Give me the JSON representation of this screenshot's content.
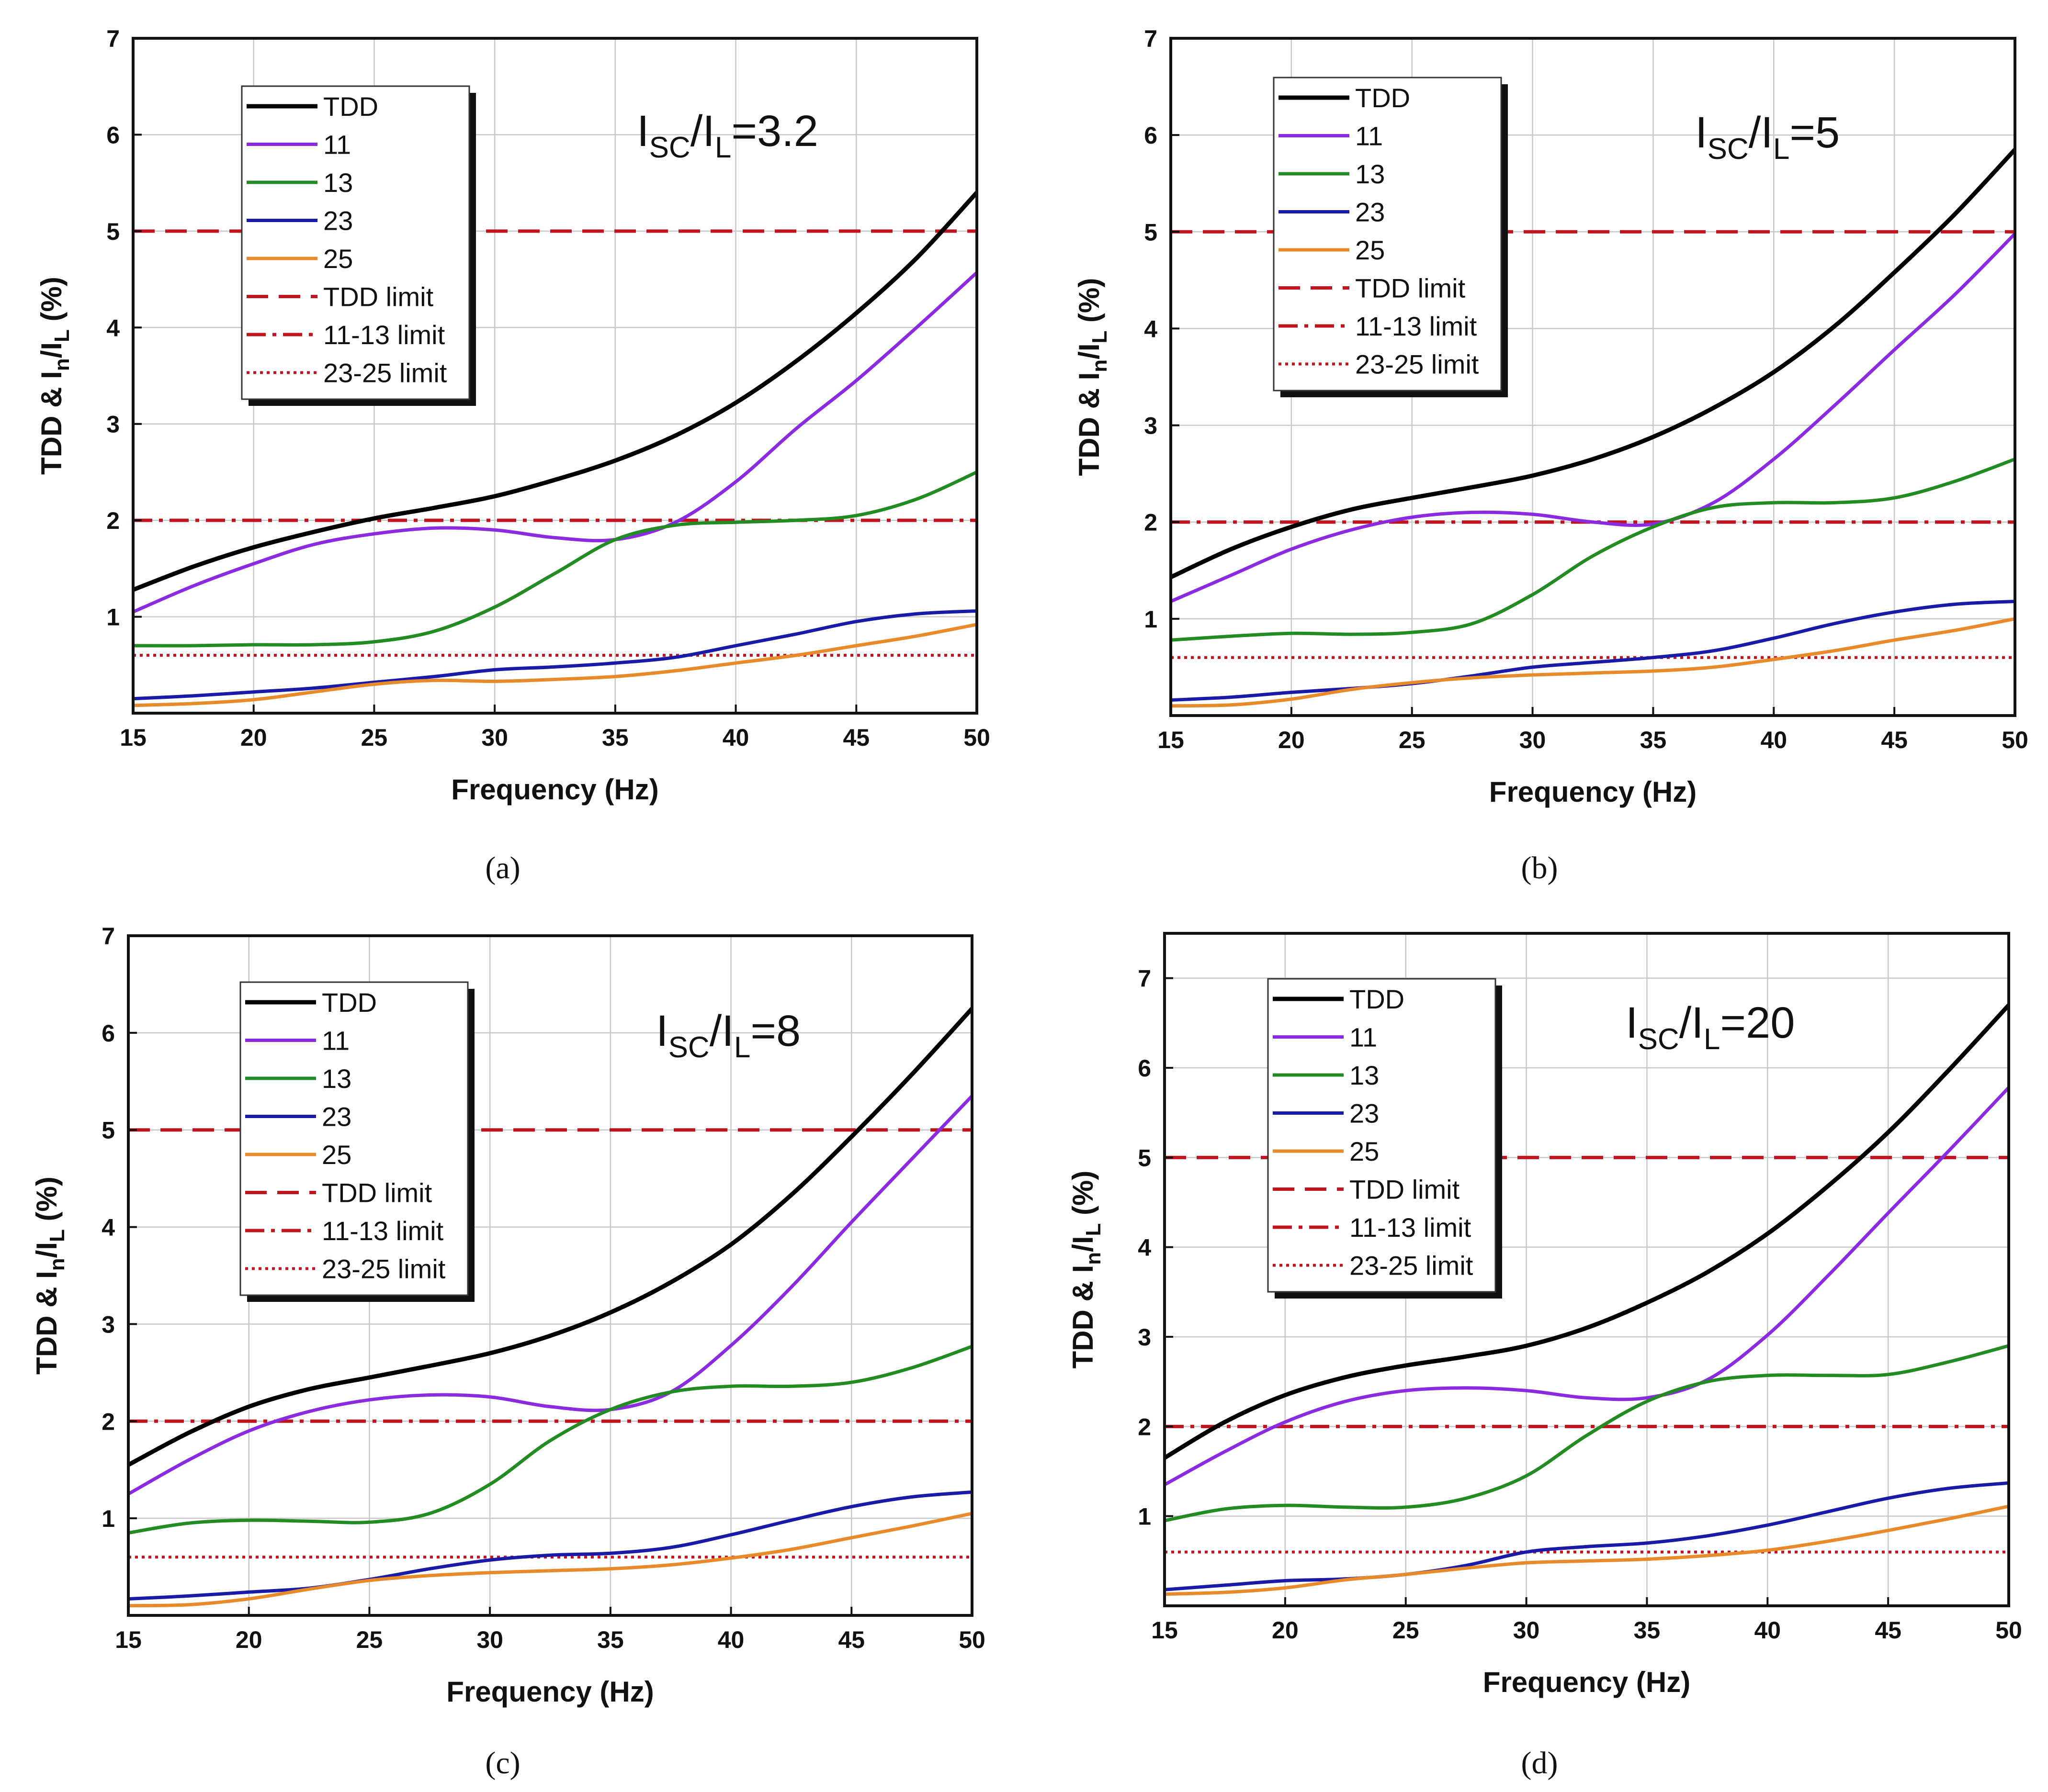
{
  "figure": {
    "captions": [
      "(a)",
      "(b)",
      "(c)",
      "(d)"
    ]
  },
  "colors": {
    "TDD": "#000000",
    "11": "#8a2be2",
    "13": "#228b22",
    "23": "#1a1aa8",
    "25": "#e88a2a",
    "limit": "#c0141e",
    "grid": "#c8c8c8"
  },
  "chart_data": [
    {
      "type": "line",
      "panel": "a",
      "annotation": {
        "main": "I",
        "sub1": "SC",
        "slash": "/I",
        "sub2": "L",
        "value": "=3.2"
      },
      "xlabel": "Frequency (Hz)",
      "ylabel": {
        "a": "TDD & I",
        "sub": "n",
        "b": "/I",
        "sub2": "L",
        "c": " (%)"
      },
      "xlim": [
        15,
        50
      ],
      "ylim": [
        0,
        7
      ],
      "xticks": [
        15,
        20,
        25,
        30,
        35,
        40,
        45,
        50
      ],
      "yticks": [
        1,
        2,
        3,
        4,
        5,
        6,
        7
      ],
      "x": [
        15,
        17.5,
        20,
        22.5,
        25,
        27.5,
        30,
        32.5,
        35,
        37.5,
        40,
        42.5,
        45,
        47.5,
        50
      ],
      "series": [
        {
          "name": "TDD",
          "values": [
            1.28,
            1.52,
            1.72,
            1.88,
            2.02,
            2.13,
            2.25,
            2.42,
            2.62,
            2.88,
            3.22,
            3.65,
            4.15,
            4.72,
            5.4
          ]
        },
        {
          "name": "11",
          "values": [
            1.05,
            1.32,
            1.55,
            1.75,
            1.86,
            1.92,
            1.9,
            1.82,
            1.8,
            1.98,
            2.4,
            2.95,
            3.45,
            4.0,
            4.57
          ]
        },
        {
          "name": "13",
          "values": [
            0.7,
            0.7,
            0.71,
            0.71,
            0.74,
            0.85,
            1.1,
            1.45,
            1.8,
            1.95,
            1.98,
            2.0,
            2.05,
            2.22,
            2.5
          ]
        },
        {
          "name": "23",
          "values": [
            0.15,
            0.18,
            0.22,
            0.26,
            0.32,
            0.38,
            0.45,
            0.48,
            0.52,
            0.58,
            0.7,
            0.82,
            0.95,
            1.03,
            1.06
          ]
        },
        {
          "name": "25",
          "values": [
            0.08,
            0.1,
            0.14,
            0.22,
            0.3,
            0.34,
            0.33,
            0.35,
            0.38,
            0.44,
            0.52,
            0.6,
            0.7,
            0.8,
            0.92
          ]
        }
      ],
      "limits": [
        {
          "name": "TDD limit",
          "value": 5
        },
        {
          "name": "11-13 limit",
          "value": 2
        },
        {
          "name": "23-25 limit",
          "value": 0.6
        }
      ],
      "legend": [
        "TDD",
        "11",
        "13",
        "23",
        "25",
        "TDD limit",
        "11-13 limit",
        "23-25 limit"
      ]
    },
    {
      "type": "line",
      "panel": "b",
      "annotation": {
        "main": "I",
        "sub1": "SC",
        "slash": "/I",
        "sub2": "L",
        "value": "=5"
      },
      "xlabel": "Frequency (Hz)",
      "ylabel": {
        "a": "TDD & I",
        "sub": "n",
        "b": "/I",
        "sub2": "L",
        "c": " (%)"
      },
      "xlim": [
        15,
        50
      ],
      "ylim": [
        0,
        7
      ],
      "xticks": [
        15,
        20,
        25,
        30,
        35,
        40,
        45,
        50
      ],
      "yticks": [
        1,
        2,
        3,
        4,
        5,
        6,
        7
      ],
      "x": [
        15,
        17.5,
        20,
        22.5,
        25,
        27.5,
        30,
        32.5,
        35,
        37.5,
        40,
        42.5,
        45,
        47.5,
        50
      ],
      "series": [
        {
          "name": "TDD",
          "values": [
            1.43,
            1.72,
            1.95,
            2.13,
            2.25,
            2.36,
            2.48,
            2.65,
            2.88,
            3.18,
            3.55,
            4.02,
            4.58,
            5.18,
            5.85
          ]
        },
        {
          "name": "11",
          "values": [
            1.18,
            1.45,
            1.72,
            1.92,
            2.05,
            2.1,
            2.08,
            2.0,
            1.98,
            2.2,
            2.65,
            3.2,
            3.78,
            4.35,
            4.98
          ]
        },
        {
          "name": "13",
          "values": [
            0.78,
            0.82,
            0.85,
            0.84,
            0.86,
            0.95,
            1.25,
            1.65,
            1.95,
            2.15,
            2.2,
            2.2,
            2.25,
            2.42,
            2.65
          ]
        },
        {
          "name": "23",
          "values": [
            0.16,
            0.19,
            0.24,
            0.28,
            0.33,
            0.41,
            0.5,
            0.55,
            0.6,
            0.67,
            0.8,
            0.95,
            1.07,
            1.15,
            1.18
          ]
        },
        {
          "name": "25",
          "values": [
            0.1,
            0.11,
            0.17,
            0.27,
            0.34,
            0.39,
            0.42,
            0.44,
            0.46,
            0.5,
            0.58,
            0.67,
            0.78,
            0.88,
            1.0
          ]
        }
      ],
      "limits": [
        {
          "name": "TDD limit",
          "value": 5
        },
        {
          "name": "11-13 limit",
          "value": 2
        },
        {
          "name": "23-25 limit",
          "value": 0.6
        }
      ],
      "legend": [
        "TDD",
        "11",
        "13",
        "23",
        "25",
        "TDD limit",
        "11-13 limit",
        "23-25 limit"
      ]
    },
    {
      "type": "line",
      "panel": "c",
      "annotation": {
        "main": "I",
        "sub1": "SC",
        "slash": "/I",
        "sub2": "L",
        "value": "=8"
      },
      "xlabel": "Frequency (Hz)",
      "ylabel": {
        "a": "TDD & I",
        "sub": "n",
        "b": "/I",
        "sub2": "L",
        "c": " (%)"
      },
      "xlim": [
        15,
        50
      ],
      "ylim": [
        0,
        7
      ],
      "xticks": [
        15,
        20,
        25,
        30,
        35,
        40,
        45,
        50
      ],
      "yticks": [
        1,
        2,
        3,
        4,
        5,
        6,
        7
      ],
      "x": [
        15,
        17.5,
        20,
        22.5,
        25,
        27.5,
        30,
        32.5,
        35,
        37.5,
        40,
        42.5,
        45,
        47.5,
        50
      ],
      "series": [
        {
          "name": "TDD",
          "values": [
            1.55,
            1.88,
            2.15,
            2.33,
            2.45,
            2.57,
            2.7,
            2.88,
            3.12,
            3.43,
            3.82,
            4.33,
            4.93,
            5.57,
            6.25
          ]
        },
        {
          "name": "11",
          "values": [
            1.25,
            1.6,
            1.9,
            2.1,
            2.22,
            2.27,
            2.25,
            2.15,
            2.12,
            2.3,
            2.78,
            3.38,
            4.05,
            4.7,
            5.35
          ]
        },
        {
          "name": "13",
          "values": [
            0.85,
            0.95,
            0.98,
            0.97,
            0.96,
            1.05,
            1.35,
            1.8,
            2.12,
            2.3,
            2.36,
            2.36,
            2.4,
            2.55,
            2.77
          ]
        },
        {
          "name": "23",
          "values": [
            0.17,
            0.2,
            0.24,
            0.28,
            0.37,
            0.48,
            0.57,
            0.62,
            0.64,
            0.7,
            0.83,
            0.98,
            1.12,
            1.22,
            1.27
          ]
        },
        {
          "name": "25",
          "values": [
            0.1,
            0.11,
            0.17,
            0.27,
            0.36,
            0.41,
            0.44,
            0.46,
            0.48,
            0.52,
            0.59,
            0.68,
            0.8,
            0.92,
            1.05
          ]
        }
      ],
      "limits": [
        {
          "name": "TDD limit",
          "value": 5
        },
        {
          "name": "11-13 limit",
          "value": 2
        },
        {
          "name": "23-25 limit",
          "value": 0.6
        }
      ],
      "legend": [
        "TDD",
        "11",
        "13",
        "23",
        "25",
        "TDD limit",
        "11-13 limit",
        "23-25 limit"
      ]
    },
    {
      "type": "line",
      "panel": "d",
      "annotation": {
        "main": "I",
        "sub1": "SC",
        "slash": "/I",
        "sub2": "L",
        "value": "=20"
      },
      "xlabel": "Frequency (Hz)",
      "ylabel": {
        "a": "TDD & I",
        "sub": "n",
        "b": "/I",
        "sub2": "L",
        "c": " (%)"
      },
      "xlim": [
        15,
        50
      ],
      "ylim": [
        0,
        7.5
      ],
      "xticks": [
        15,
        20,
        25,
        30,
        35,
        40,
        45,
        50
      ],
      "yticks": [
        1,
        2,
        3,
        4,
        5,
        6,
        7
      ],
      "x": [
        15,
        17.5,
        20,
        22.5,
        25,
        27.5,
        30,
        32.5,
        35,
        37.5,
        40,
        42.5,
        45,
        47.5,
        50
      ],
      "series": [
        {
          "name": "TDD",
          "values": [
            1.65,
            2.05,
            2.35,
            2.55,
            2.68,
            2.78,
            2.9,
            3.1,
            3.38,
            3.72,
            4.15,
            4.68,
            5.28,
            5.97,
            6.7
          ]
        },
        {
          "name": "11",
          "values": [
            1.35,
            1.72,
            2.05,
            2.28,
            2.4,
            2.43,
            2.4,
            2.32,
            2.32,
            2.52,
            3.02,
            3.68,
            4.38,
            5.07,
            5.78
          ]
        },
        {
          "name": "13",
          "values": [
            0.95,
            1.08,
            1.12,
            1.1,
            1.1,
            1.2,
            1.45,
            1.9,
            2.28,
            2.5,
            2.57,
            2.57,
            2.58,
            2.72,
            2.9
          ]
        },
        {
          "name": "23",
          "values": [
            0.18,
            0.23,
            0.28,
            0.3,
            0.35,
            0.45,
            0.6,
            0.66,
            0.7,
            0.78,
            0.9,
            1.05,
            1.2,
            1.31,
            1.37
          ]
        },
        {
          "name": "25",
          "values": [
            0.13,
            0.15,
            0.2,
            0.29,
            0.35,
            0.42,
            0.48,
            0.5,
            0.52,
            0.56,
            0.62,
            0.72,
            0.84,
            0.97,
            1.11
          ]
        }
      ],
      "limits": [
        {
          "name": "TDD limit",
          "value": 5
        },
        {
          "name": "11-13 limit",
          "value": 2
        },
        {
          "name": "23-25 limit",
          "value": 0.6
        }
      ],
      "legend": [
        "TDD",
        "11",
        "13",
        "23",
        "25",
        "TDD limit",
        "11-13 limit",
        "23-25 limit"
      ]
    }
  ]
}
